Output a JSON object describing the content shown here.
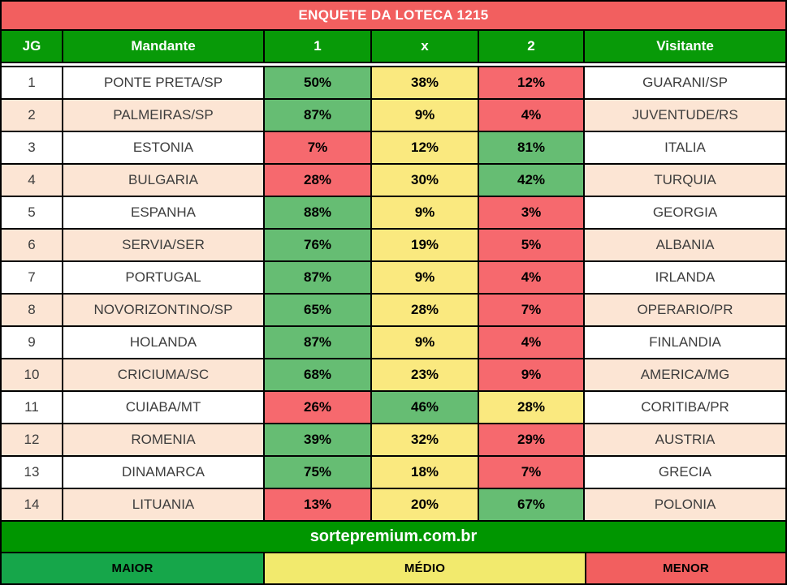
{
  "title": "ENQUETE DA LOTECA 1215",
  "header": {
    "jg": "JG",
    "mandante": "Mandante",
    "one": "1",
    "draw": "x",
    "two": "2",
    "visitante": "Visitante"
  },
  "rows": [
    {
      "jg": "1",
      "mandante": "PONTE PRETA/SP",
      "p1": "50%",
      "px": "38%",
      "p2": "12%",
      "levels": [
        "green",
        "yellow",
        "red"
      ],
      "visitante": "GUARANI/SP"
    },
    {
      "jg": "2",
      "mandante": "PALMEIRAS/SP",
      "p1": "87%",
      "px": "9%",
      "p2": "4%",
      "levels": [
        "green",
        "yellow",
        "red"
      ],
      "visitante": "JUVENTUDE/RS"
    },
    {
      "jg": "3",
      "mandante": "ESTONIA",
      "p1": "7%",
      "px": "12%",
      "p2": "81%",
      "levels": [
        "red",
        "yellow",
        "green"
      ],
      "visitante": "ITALIA"
    },
    {
      "jg": "4",
      "mandante": "BULGARIA",
      "p1": "28%",
      "px": "30%",
      "p2": "42%",
      "levels": [
        "red",
        "yellow",
        "green"
      ],
      "visitante": "TURQUIA"
    },
    {
      "jg": "5",
      "mandante": "ESPANHA",
      "p1": "88%",
      "px": "9%",
      "p2": "3%",
      "levels": [
        "green",
        "yellow",
        "red"
      ],
      "visitante": "GEORGIA"
    },
    {
      "jg": "6",
      "mandante": "SERVIA/SER",
      "p1": "76%",
      "px": "19%",
      "p2": "5%",
      "levels": [
        "green",
        "yellow",
        "red"
      ],
      "visitante": "ALBANIA"
    },
    {
      "jg": "7",
      "mandante": "PORTUGAL",
      "p1": "87%",
      "px": "9%",
      "p2": "4%",
      "levels": [
        "green",
        "yellow",
        "red"
      ],
      "visitante": "IRLANDA"
    },
    {
      "jg": "8",
      "mandante": "NOVORIZONTINO/SP",
      "p1": "65%",
      "px": "28%",
      "p2": "7%",
      "levels": [
        "green",
        "yellow",
        "red"
      ],
      "visitante": "OPERARIO/PR"
    },
    {
      "jg": "9",
      "mandante": "HOLANDA",
      "p1": "87%",
      "px": "9%",
      "p2": "4%",
      "levels": [
        "green",
        "yellow",
        "red"
      ],
      "visitante": "FINLANDIA"
    },
    {
      "jg": "10",
      "mandante": "CRICIUMA/SC",
      "p1": "68%",
      "px": "23%",
      "p2": "9%",
      "levels": [
        "green",
        "yellow",
        "red"
      ],
      "visitante": "AMERICA/MG"
    },
    {
      "jg": "11",
      "mandante": "CUIABA/MT",
      "p1": "26%",
      "px": "46%",
      "p2": "28%",
      "levels": [
        "red",
        "green",
        "yellow"
      ],
      "visitante": "CORITIBA/PR"
    },
    {
      "jg": "12",
      "mandante": "ROMENIA",
      "p1": "39%",
      "px": "32%",
      "p2": "29%",
      "levels": [
        "green",
        "yellow",
        "red"
      ],
      "visitante": "AUSTRIA"
    },
    {
      "jg": "13",
      "mandante": "DINAMARCA",
      "p1": "75%",
      "px": "18%",
      "p2": "7%",
      "levels": [
        "green",
        "yellow",
        "red"
      ],
      "visitante": "GRECIA"
    },
    {
      "jg": "14",
      "mandante": "LITUANIA",
      "p1": "13%",
      "px": "20%",
      "p2": "67%",
      "levels": [
        "red",
        "yellow",
        "green"
      ],
      "visitante": "POLONIA"
    }
  ],
  "footer": {
    "website": "sortepremium.com.br"
  },
  "legend": [
    {
      "label": "MAIOR",
      "meaning": "highest probability",
      "color_key": "legend_green"
    },
    {
      "label": "MÉDIO",
      "meaning": "medium probability",
      "color_key": "legend_yellow"
    },
    {
      "label": "MENOR",
      "meaning": "lowest probability",
      "color_key": "legend_red"
    }
  ],
  "colors": {
    "title_bar": "#f25f5f",
    "header_green": "#089a08",
    "cell_green": "#66bd73",
    "cell_yellow": "#fae97f",
    "cell_red": "#f6696e",
    "row_odd": "#ffffff",
    "row_even": "#fce5d4",
    "footer_green": "#009600",
    "legend_green": "#16a64a",
    "legend_yellow": "#f2ea6d",
    "legend_red": "#f25f5f"
  },
  "chart_data": {
    "type": "table",
    "title": "ENQUETE DA LOTECA 1215",
    "columns": [
      "JG",
      "Mandante",
      "1",
      "x",
      "2",
      "Visitante"
    ],
    "rows": [
      [
        1,
        "PONTE PRETA/SP",
        50,
        38,
        12,
        "GUARANI/SP"
      ],
      [
        2,
        "PALMEIRAS/SP",
        87,
        9,
        4,
        "JUVENTUDE/RS"
      ],
      [
        3,
        "ESTONIA",
        7,
        12,
        81,
        "ITALIA"
      ],
      [
        4,
        "BULGARIA",
        28,
        30,
        42,
        "TURQUIA"
      ],
      [
        5,
        "ESPANHA",
        88,
        9,
        3,
        "GEORGIA"
      ],
      [
        6,
        "SERVIA/SER",
        76,
        19,
        5,
        "ALBANIA"
      ],
      [
        7,
        "PORTUGAL",
        87,
        9,
        4,
        "IRLANDA"
      ],
      [
        8,
        "NOVORIZONTINO/SP",
        65,
        28,
        7,
        "OPERARIO/PR"
      ],
      [
        9,
        "HOLANDA",
        87,
        9,
        4,
        "FINLANDIA"
      ],
      [
        10,
        "CRICIUMA/SC",
        68,
        23,
        9,
        "AMERICA/MG"
      ],
      [
        11,
        "CUIABA/MT",
        26,
        46,
        28,
        "CORITIBA/PR"
      ],
      [
        12,
        "ROMENIA",
        39,
        32,
        29,
        "AUSTRIA"
      ],
      [
        13,
        "DINAMARCA",
        75,
        18,
        7,
        "GRECIA"
      ],
      [
        14,
        "LITUANIA",
        13,
        20,
        67,
        "POLONIA"
      ]
    ],
    "value_unit": "%",
    "cell_color_coding": {
      "green": "MAIOR (highest of 1/x/2)",
      "yellow": "MÉDIO (middle)",
      "red": "MENOR (lowest)"
    },
    "footer_text": "sortepremium.com.br"
  }
}
